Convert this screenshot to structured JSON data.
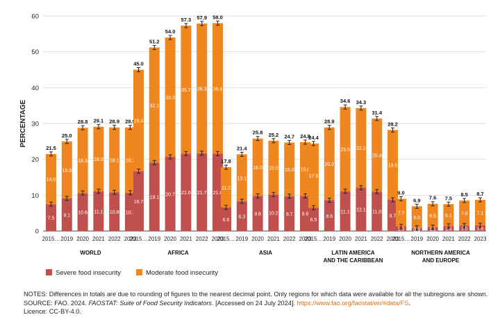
{
  "colors": {
    "severe": "#c0504d",
    "moderate": "#f0861f",
    "error": "#222222",
    "grid": "#cfcfcf",
    "axis": "#444444",
    "link": "#e0701b"
  },
  "chart_data": {
    "type": "bar",
    "stacked": true,
    "ylabel": "PERCENTAGE",
    "ylim": [
      0,
      60
    ],
    "yticks": [
      0,
      10,
      20,
      30,
      40,
      50,
      60
    ],
    "grid": true,
    "legend_position": "bottom-left",
    "legend": [
      {
        "key": "severe",
        "label": "Severe food insecurity"
      },
      {
        "key": "moderate",
        "label": "Moderate food insecurity"
      }
    ],
    "years": [
      "2015…",
      "2019",
      "2020",
      "2021",
      "2022",
      "2023"
    ],
    "groups": [
      {
        "name": [
          "WORLD"
        ],
        "severe": [
          7.5,
          9.1,
          10.6,
          11.1,
          10.8,
          10.7
        ],
        "moderate": [
          14.0,
          15.9,
          18.3,
          18.0,
          18.1,
          18.2
        ],
        "total": [
          "21.5",
          "25.0",
          "28.8",
          "29.1",
          "28.9",
          "28.9"
        ]
      },
      {
        "name": [
          "AFRICA"
        ],
        "severe": [
          16.7,
          19.1,
          20.7,
          21.6,
          21.7,
          21.6
        ],
        "moderate": [
          28.4,
          32.1,
          33.3,
          35.7,
          36.3,
          36.4
        ],
        "total": [
          "45.0",
          "51.2",
          "54.0",
          "57.3",
          "57.9",
          "58.0"
        ]
      },
      {
        "name": [
          "ASIA"
        ],
        "severe": [
          6.6,
          8.3,
          9.8,
          10.2,
          9.7,
          9.8
        ],
        "moderate": [
          11.2,
          13.1,
          16.0,
          15.0,
          15.0,
          15.0
        ],
        "total": [
          "17.8",
          "21.4",
          "25.8",
          "25.2",
          "24.7",
          "24.8"
        ]
      },
      {
        "name": [
          "LATIN AMERICA",
          "AND THE CARIBBEAN"
        ],
        "severe": [
          6.5,
          8.6,
          11.1,
          12.1,
          11.0,
          8.7
        ],
        "moderate": [
          17.9,
          20.2,
          23.5,
          22.2,
          20.4,
          19.5
        ],
        "total": [
          "24.4",
          "28.9",
          "34.6",
          "34.3",
          "31.4",
          "28.2"
        ]
      },
      {
        "name": [
          "NORTHERN AMERICA",
          "AND EUROPE"
        ],
        "severe": [
          1.3,
          0.9,
          1.1,
          1.4,
          1.5,
          1.6
        ],
        "moderate": [
          7.7,
          6.0,
          6.5,
          6.1,
          7.0,
          7.1
        ],
        "total": [
          "9.0",
          "6.9",
          "7.6",
          "7.5",
          "8.5",
          "8.7"
        ]
      }
    ]
  },
  "notes": {
    "notes_text": "NOTES: Differences in totals are due to rounding of figures to the nearest decimal point. Only regions for which data were available for all the subregions are shown.",
    "source_prefix": "SOURCE: FAO. 2024. ",
    "source_title": "FAOSTAT: Suite of Food Security Indicators",
    "source_accessed": ". [Accessed on 24 July 2024]. ",
    "source_url": "https://www.fao.org/faostat/en/#data/FS",
    "source_end": ".",
    "licence": "Licence: CC-BY-4.0."
  }
}
